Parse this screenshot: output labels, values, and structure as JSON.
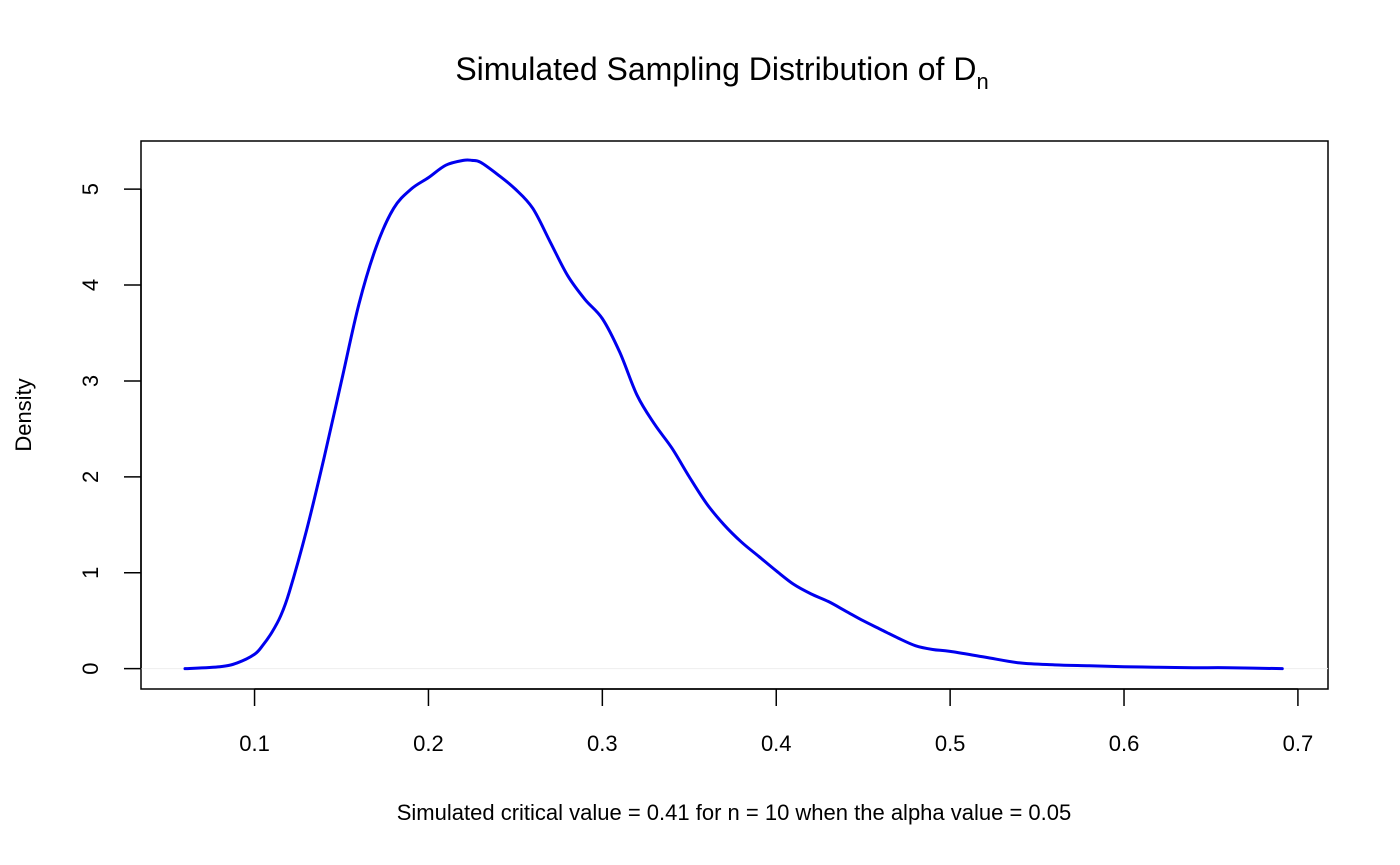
{
  "chart_data": {
    "type": "line",
    "title": "Simulated Sampling Distribution of D",
    "title_subscript": "n",
    "xlabel": "Simulated critical value = 0.41 for n = 10 when the alpha value = 0.05",
    "ylabel": "Density",
    "xlim": [
      0.0347,
      0.7173
    ],
    "ylim": [
      -0.212,
      5.502
    ],
    "x_ticks": [
      0.1,
      0.2,
      0.3,
      0.4,
      0.5,
      0.6,
      0.7
    ],
    "x_tick_labels": [
      "0.1",
      "0.2",
      "0.3",
      "0.4",
      "0.5",
      "0.6",
      "0.7"
    ],
    "y_ticks": [
      0,
      1,
      2,
      3,
      4,
      5
    ],
    "y_tick_labels": [
      "0",
      "1",
      "2",
      "3",
      "4",
      "5"
    ],
    "grid": false,
    "line_color": "#0000ee",
    "baseline_color": "#eeeeee",
    "series": [
      {
        "x": [
          0.06,
          0.08,
          0.09,
          0.1,
          0.105,
          0.11,
          0.115,
          0.12,
          0.13,
          0.14,
          0.15,
          0.16,
          0.17,
          0.18,
          0.19,
          0.2,
          0.21,
          0.22,
          0.225,
          0.23,
          0.24,
          0.25,
          0.26,
          0.27,
          0.28,
          0.29,
          0.3,
          0.31,
          0.32,
          0.33,
          0.34,
          0.35,
          0.36,
          0.37,
          0.38,
          0.39,
          0.4,
          0.41,
          0.42,
          0.43,
          0.44,
          0.45,
          0.46,
          0.47,
          0.48,
          0.49,
          0.5,
          0.52,
          0.54,
          0.56,
          0.58,
          0.6,
          0.62,
          0.64,
          0.66,
          0.691
        ],
        "y": [
          0.0,
          0.02,
          0.06,
          0.15,
          0.25,
          0.38,
          0.55,
          0.8,
          1.45,
          2.2,
          3.0,
          3.8,
          4.4,
          4.8,
          5.0,
          5.12,
          5.25,
          5.3,
          5.3,
          5.28,
          5.15,
          5.0,
          4.8,
          4.45,
          4.1,
          3.85,
          3.65,
          3.3,
          2.85,
          2.55,
          2.3,
          2.0,
          1.72,
          1.5,
          1.32,
          1.17,
          1.02,
          0.88,
          0.78,
          0.7,
          0.6,
          0.5,
          0.41,
          0.32,
          0.24,
          0.2,
          0.18,
          0.12,
          0.06,
          0.04,
          0.03,
          0.02,
          0.015,
          0.01,
          0.01,
          0.0
        ]
      }
    ]
  }
}
